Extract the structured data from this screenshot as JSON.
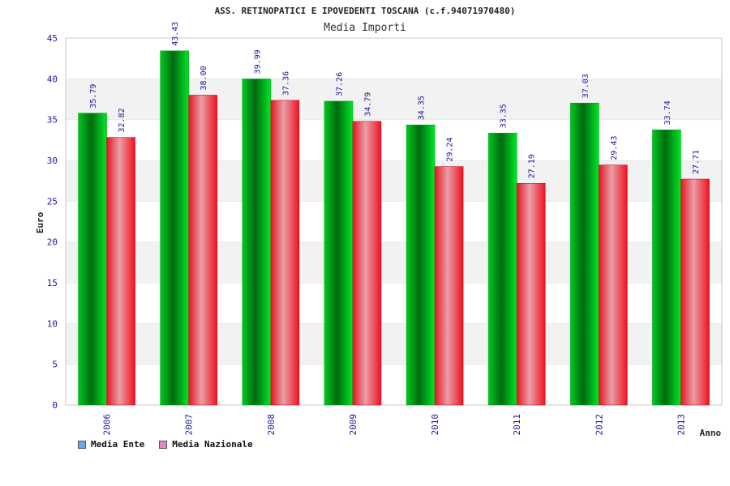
{
  "chart_data": {
    "type": "bar",
    "title": "ASS. RETINOPATICI E IPOVEDENTI TOSCANA (c.f.94071970480)",
    "subtitle": "Media Importi",
    "xlabel": "Anno",
    "ylabel": "Euro",
    "ylim": [
      0,
      45
    ],
    "yticks": [
      "0",
      "5",
      "10",
      "15",
      "20",
      "25",
      "30",
      "35",
      "40",
      "45"
    ],
    "grid": true,
    "legend_placement": "bottom-left",
    "categories": [
      "2006",
      "2007",
      "2008",
      "2009",
      "2010",
      "2011",
      "2012",
      "2013"
    ],
    "series": [
      {
        "name": "Media Ente",
        "values": [
          35.79,
          43.43,
          39.99,
          37.26,
          34.35,
          33.35,
          37.03,
          33.74
        ],
        "labels": [
          "35.79",
          "43.43",
          "39.99",
          "37.26",
          "34.35",
          "33.35",
          "37.03",
          "33.74"
        ],
        "color": "#00cc22",
        "legend_color": "#6aa8ee"
      },
      {
        "name": "Media Nazionale",
        "values": [
          32.82,
          38.0,
          37.36,
          34.79,
          29.24,
          27.19,
          29.43,
          27.71
        ],
        "labels": [
          "32.82",
          "38.00",
          "37.36",
          "34.79",
          "29.24",
          "27.19",
          "29.43",
          "27.71"
        ],
        "color": "#ee2233",
        "legend_color": "#e08ab8"
      }
    ]
  }
}
